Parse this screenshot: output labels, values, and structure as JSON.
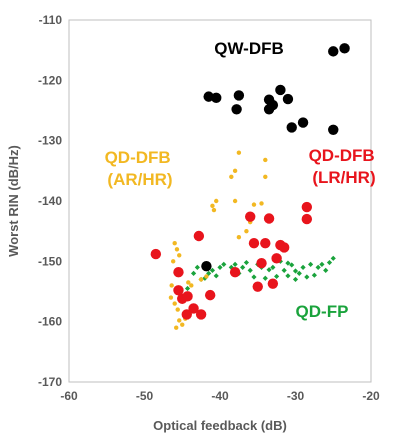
{
  "chart_data": {
    "type": "scatter",
    "xlabel": "Optical feedback (dB)",
    "ylabel": "Worst RIN (dB/Hz)",
    "xlim": [
      -60,
      -20
    ],
    "ylim": [
      -170,
      -110
    ],
    "xticks": [
      "-60",
      "-50",
      "-40",
      "-30",
      "-20"
    ],
    "yticks": [
      "-110",
      "-120",
      "-130",
      "-140",
      "-150",
      "-160",
      "-170"
    ],
    "grid": false,
    "annotations": [
      {
        "lines": [
          "QW-DFB"
        ],
        "color": "#000000",
        "series": "QW-DFB"
      },
      {
        "lines": [
          "QD-DFB",
          "(AR/HR)"
        ],
        "color": "#f2b822",
        "series": "QD-DFB (AR/HR)"
      },
      {
        "lines": [
          "QD-DFB",
          "(LR/HR)"
        ],
        "color": "#e8141c",
        "series": "QD-DFB (LR/HR)"
      },
      {
        "lines": [
          "QD-FP"
        ],
        "color": "#1aa33c",
        "series": "QD-FP"
      }
    ],
    "series": [
      {
        "key": "QW-DFB",
        "color": "#000000",
        "marker": "circle",
        "points": [
          [
            -41.5,
            -122.7
          ],
          [
            -40.5,
            -122.9
          ],
          [
            -37.5,
            -122.5
          ],
          [
            -37.8,
            -124.8
          ],
          [
            -33.5,
            -123.2
          ],
          [
            -33,
            -124.1
          ],
          [
            -33.5,
            -124.8
          ],
          [
            -32,
            -121.6
          ],
          [
            -31,
            -123.1
          ],
          [
            -30.5,
            -127.8
          ],
          [
            -29,
            -127
          ],
          [
            -25,
            -128.2
          ],
          [
            -25,
            -115.2
          ],
          [
            -23.5,
            -114.7
          ],
          [
            -41.8,
            -150.8
          ]
        ]
      },
      {
        "key": "QD-DFB (LR/HR)",
        "color": "#e8141c",
        "marker": "circle",
        "points": [
          [
            -48.5,
            -148.8
          ],
          [
            -45.5,
            -151.8
          ],
          [
            -45.5,
            -154.8
          ],
          [
            -45,
            -156.2
          ],
          [
            -44.3,
            -155.8
          ],
          [
            -43.5,
            -157.8
          ],
          [
            -42.5,
            -158.8
          ],
          [
            -42.8,
            -145.8
          ],
          [
            -41.3,
            -155.6
          ],
          [
            -44.4,
            -158.8
          ],
          [
            -38,
            -151.8
          ],
          [
            -36,
            -142.6
          ],
          [
            -35.5,
            -147
          ],
          [
            -34,
            -147
          ],
          [
            -33.5,
            -142.9
          ],
          [
            -32.5,
            -149.5
          ],
          [
            -32,
            -147.3
          ],
          [
            -31.5,
            -147.7
          ],
          [
            -33,
            -153.7
          ],
          [
            -35,
            -154.2
          ],
          [
            -34.5,
            -150.3
          ],
          [
            -28.5,
            -141
          ],
          [
            -28.5,
            -143
          ]
        ]
      },
      {
        "key": "QD-DFB (AR/HR)",
        "color": "#f2b822",
        "marker": "dot",
        "points": [
          [
            -46,
            -147
          ],
          [
            -45.7,
            -148
          ],
          [
            -45.4,
            -149
          ],
          [
            -46.2,
            -150
          ],
          [
            -45.8,
            -152
          ],
          [
            -46.4,
            -154
          ],
          [
            -46.5,
            -156
          ],
          [
            -46,
            -157
          ],
          [
            -45.6,
            -158
          ],
          [
            -45.4,
            -159.8
          ],
          [
            -45.8,
            -161
          ],
          [
            -45,
            -160.5
          ],
          [
            -44.6,
            -159.5
          ],
          [
            -44.2,
            -153.5
          ],
          [
            -43.8,
            -154
          ],
          [
            -42.5,
            -153
          ],
          [
            -41.8,
            -152.5
          ],
          [
            -41,
            -140.8
          ],
          [
            -40.5,
            -140
          ],
          [
            -40.8,
            -141.5
          ],
          [
            -38.5,
            -136
          ],
          [
            -38,
            -135
          ],
          [
            -38,
            -140
          ],
          [
            -37.5,
            -132
          ],
          [
            -37.5,
            -146
          ],
          [
            -36.5,
            -145
          ],
          [
            -36,
            -143.5
          ],
          [
            -35.5,
            -140.6
          ],
          [
            -34.5,
            -140.4
          ],
          [
            -34,
            -133.2
          ],
          [
            -34,
            -136
          ]
        ]
      },
      {
        "key": "QD-FP",
        "color": "#1aa33c",
        "marker": "diamond",
        "points": [
          [
            -45,
            -156
          ],
          [
            -44.3,
            -154.5
          ],
          [
            -43.5,
            -152
          ],
          [
            -43,
            -151
          ],
          [
            -42.5,
            -153
          ],
          [
            -42,
            -152.8
          ],
          [
            -41.5,
            -152
          ],
          [
            -41,
            -151.5
          ],
          [
            -40.5,
            -152.4
          ],
          [
            -40,
            -151
          ],
          [
            -39.5,
            -150.5
          ],
          [
            -38.5,
            -151
          ],
          [
            -38,
            -150.5
          ],
          [
            -37.5,
            -152
          ],
          [
            -37,
            -151
          ],
          [
            -36.5,
            -150.2
          ],
          [
            -36,
            -151.5
          ],
          [
            -35.5,
            -152.6
          ],
          [
            -35,
            -150.5
          ],
          [
            -34.5,
            -151
          ],
          [
            -34,
            -152.8
          ],
          [
            -33.5,
            -151.4
          ],
          [
            -33,
            -151
          ],
          [
            -32.5,
            -152.5
          ],
          [
            -32,
            -150
          ],
          [
            -31.5,
            -151.5
          ],
          [
            -31,
            -152.4
          ],
          [
            -30.5,
            -150.6
          ],
          [
            -30,
            -151.6
          ],
          [
            -29.5,
            -152
          ],
          [
            -29,
            -151
          ],
          [
            -28.5,
            -152.6
          ],
          [
            -28,
            -150.5
          ],
          [
            -27.5,
            -152.3
          ],
          [
            -27,
            -151
          ],
          [
            -26.5,
            -150.5
          ],
          [
            -26,
            -151.5
          ],
          [
            -25.5,
            -150.2
          ],
          [
            -25,
            -149.5
          ],
          [
            -30,
            -153
          ],
          [
            -31,
            -150.3
          ],
          [
            -33,
            -153.5
          ]
        ]
      }
    ]
  }
}
